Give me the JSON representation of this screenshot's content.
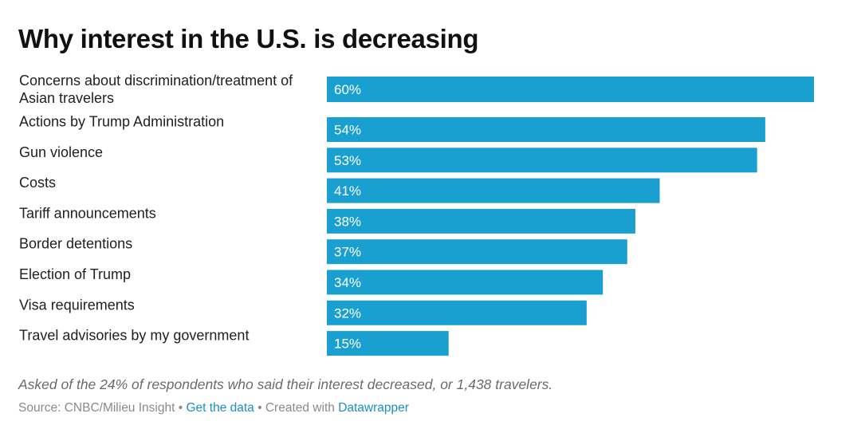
{
  "title": "Why interest in the U.S. is decreasing",
  "chart_data": {
    "type": "bar",
    "orientation": "horizontal",
    "categories": [
      [
        "Concerns about discrimination/treatment of",
        "Asian travelers"
      ],
      [
        "Actions by Trump Administration"
      ],
      [
        "Gun violence"
      ],
      [
        "Costs"
      ],
      [
        "Tariff announcements"
      ],
      [
        "Border detentions"
      ],
      [
        "Election of Trump"
      ],
      [
        "Visa requirements"
      ],
      [
        "Travel advisories by my government"
      ]
    ],
    "values": [
      60,
      54,
      53,
      41,
      38,
      37,
      34,
      32,
      15
    ],
    "value_labels": [
      "60%",
      "54%",
      "53%",
      "41%",
      "38%",
      "37%",
      "34%",
      "32%",
      "15%"
    ],
    "xlim": [
      0,
      60
    ],
    "bar_color": "#1aa0d0",
    "grid": false
  },
  "note": "Asked of the 24% of respondents who said their interest decreased, or 1,438 travelers.",
  "footer": {
    "source": "Source: CNBC/Milieu Insight",
    "separator": "•",
    "get_data_link": "Get the data",
    "created_with": "Created with",
    "datawrapper_link": "Datawrapper"
  },
  "colors": {
    "bar": "#1aa0d0",
    "link": "#1b8fc9"
  }
}
